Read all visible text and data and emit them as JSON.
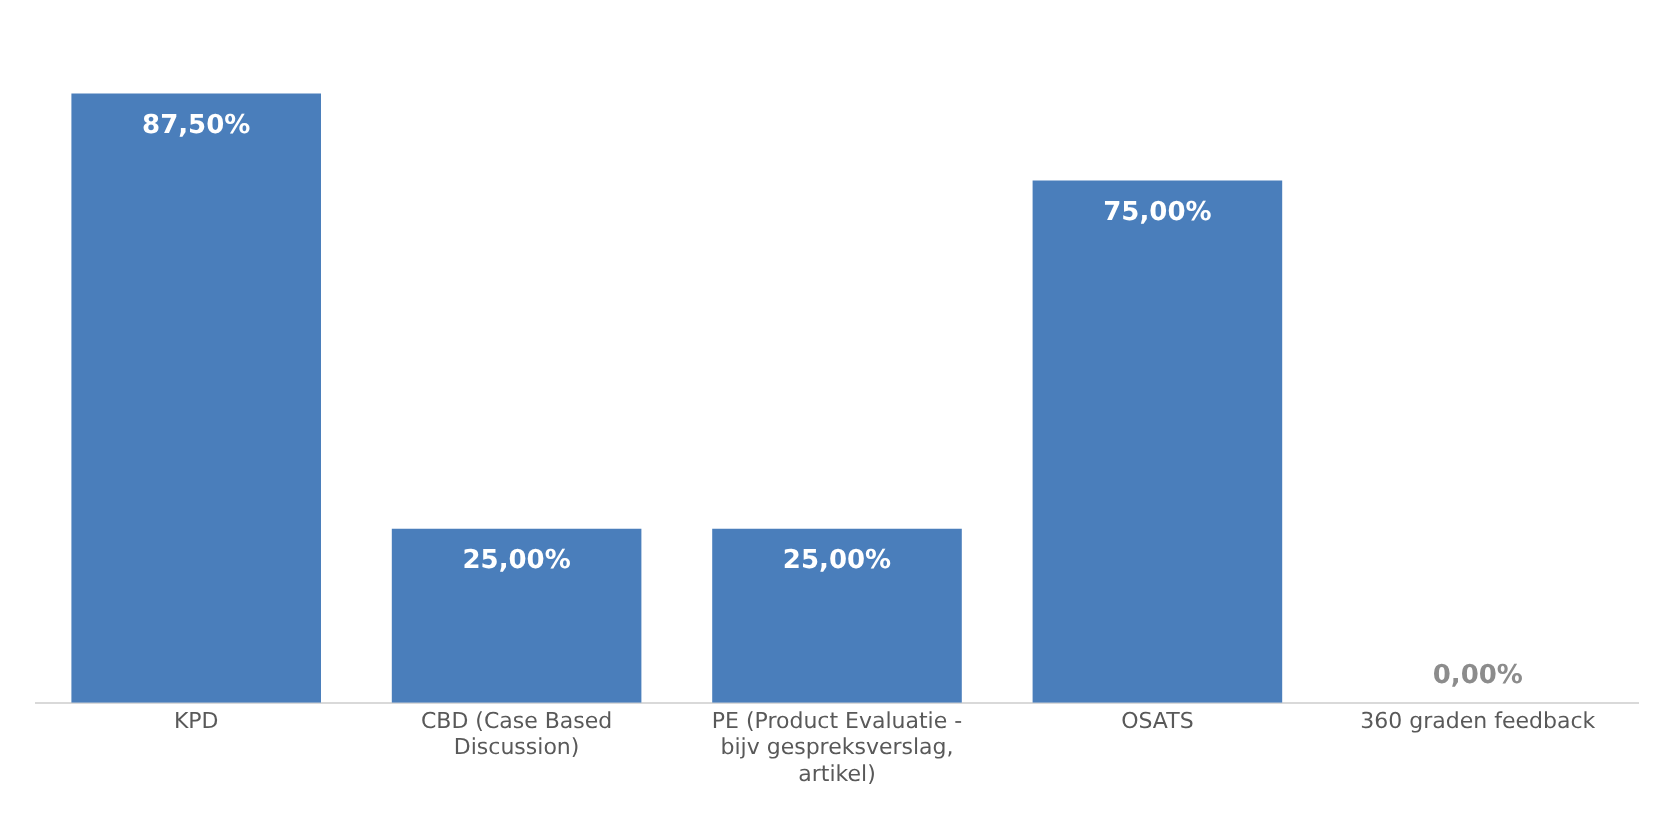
{
  "chart_data": {
    "type": "bar",
    "categories": [
      "KPD",
      "CBD (Case Based Discussion)",
      "PE (Product Evaluatie - bijv gespreksverslag, artikel)",
      "OSATS",
      "360 graden feedback"
    ],
    "values": [
      87.5,
      25,
      25,
      75,
      0
    ],
    "value_labels": [
      "87,50%",
      "25,00%",
      "25,00%",
      "75,00%",
      "0,00%"
    ],
    "color": "#4a7ebb",
    "grid": false,
    "legend": false
  }
}
